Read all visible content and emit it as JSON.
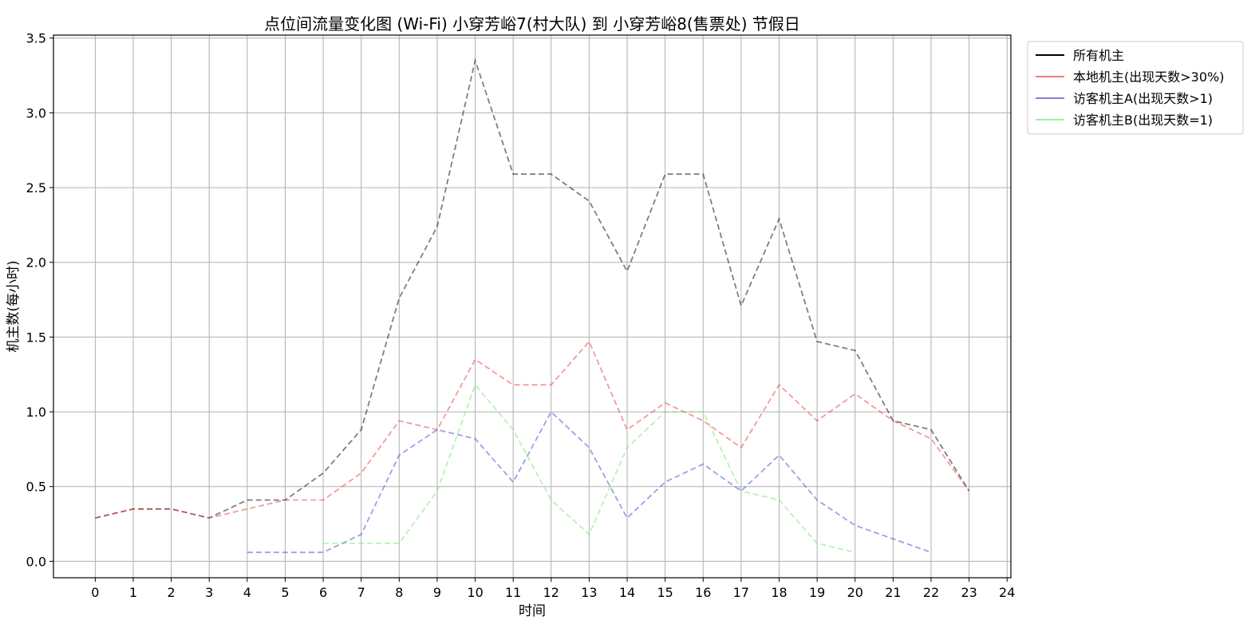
{
  "chart_data": {
    "type": "line",
    "title": "点位间流量变化图 (Wi-Fi) 小穿芳峪7(村大队) 到 小穿芳峪8(售票处) 节假日",
    "xlabel": "时间",
    "ylabel": "机主数(每小时)",
    "xlim": [
      -1.1,
      24.1
    ],
    "ylim": [
      -0.11,
      3.52
    ],
    "x_ticks": [
      "0",
      "1",
      "2",
      "3",
      "4",
      "5",
      "6",
      "7",
      "8",
      "9",
      "10",
      "11",
      "12",
      "13",
      "14",
      "15",
      "16",
      "17",
      "18",
      "19",
      "20",
      "21",
      "22",
      "23",
      "24"
    ],
    "y_ticks": [
      "0.0",
      "0.5",
      "1.0",
      "1.5",
      "2.0",
      "2.5",
      "3.0",
      "3.5"
    ],
    "grid": true,
    "legend_position": "outside-top-right",
    "series": [
      {
        "name": "所有机主",
        "color": "#000000",
        "x": [
          0,
          1,
          2,
          3,
          4,
          5,
          6,
          7,
          8,
          9,
          10,
          11,
          12,
          13,
          14,
          15,
          16,
          17,
          18,
          19,
          20,
          21,
          22,
          23
        ],
        "y": [
          0.29,
          0.35,
          0.35,
          0.29,
          0.41,
          0.41,
          0.59,
          0.88,
          1.76,
          2.24,
          3.35,
          2.59,
          2.59,
          2.41,
          1.94,
          2.59,
          2.59,
          1.71,
          2.29,
          1.47,
          1.41,
          0.94,
          0.88,
          0.47
        ]
      },
      {
        "name": "本地机主(出现天数>30%)",
        "color": "#e53935",
        "x": [
          0,
          1,
          2,
          3,
          4,
          5,
          6,
          7,
          8,
          9,
          10,
          11,
          12,
          13,
          14,
          15,
          16,
          17,
          18,
          19,
          20,
          21,
          22,
          23
        ],
        "y": [
          0.29,
          0.35,
          0.35,
          0.29,
          0.35,
          0.41,
          0.41,
          0.59,
          0.94,
          0.88,
          1.35,
          1.18,
          1.18,
          1.47,
          0.88,
          1.06,
          0.94,
          0.76,
          1.18,
          0.94,
          1.12,
          0.94,
          0.82,
          0.47
        ]
      },
      {
        "name": "访客机主A(出现天数>1)",
        "color": "#3f3fd0",
        "x": [
          4,
          5,
          6,
          7,
          8,
          9,
          10,
          11,
          12,
          13,
          14,
          15,
          16,
          17,
          18,
          19,
          20,
          21,
          22
        ],
        "y": [
          0.06,
          0.06,
          0.06,
          0.18,
          0.71,
          0.88,
          0.82,
          0.53,
          1.0,
          0.76,
          0.29,
          0.53,
          0.65,
          0.47,
          0.71,
          0.41,
          0.24,
          0.15,
          0.06
        ]
      },
      {
        "name": "访客机主B(出现天数=1)",
        "color": "#6fe66f",
        "x": [
          6,
          7,
          8,
          9,
          10,
          11,
          12,
          13,
          14,
          15,
          16,
          17,
          18,
          19,
          20
        ],
        "y": [
          0.12,
          0.12,
          0.12,
          0.47,
          1.18,
          0.88,
          0.41,
          0.18,
          0.76,
          1.0,
          1.0,
          0.47,
          0.41,
          0.12,
          0.06
        ]
      }
    ]
  }
}
